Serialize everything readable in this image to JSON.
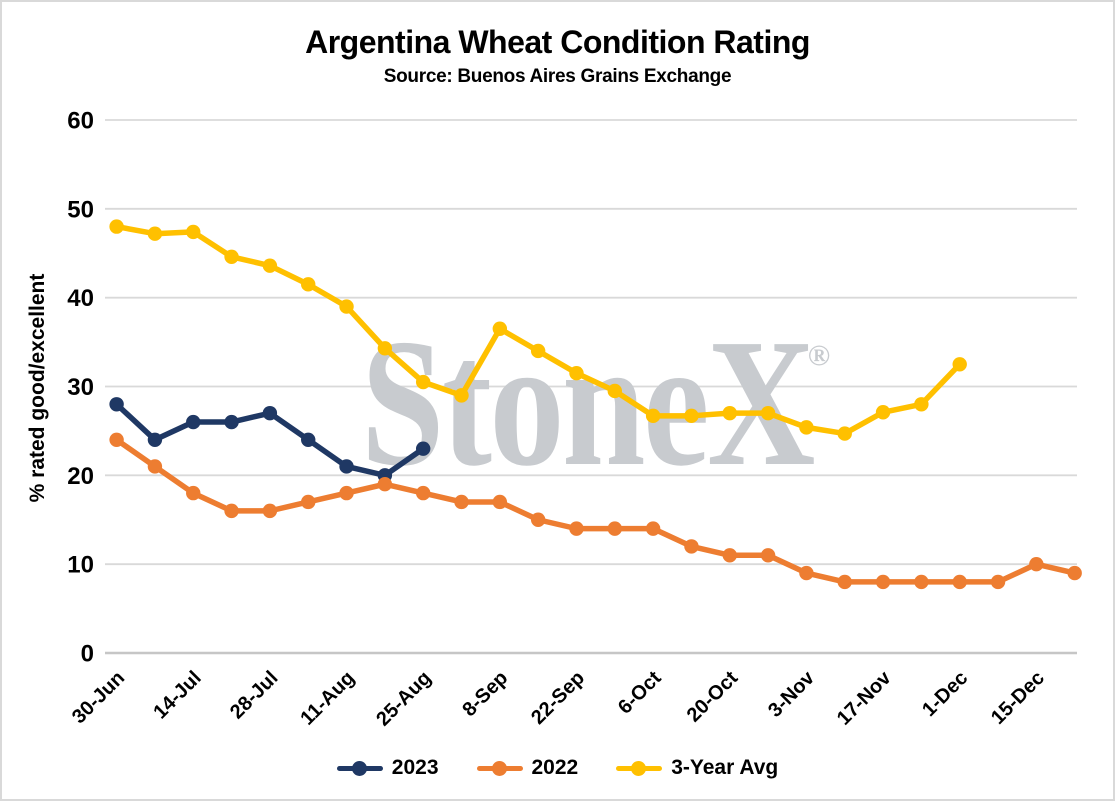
{
  "header": {
    "title": "Argentina Wheat Condition Rating",
    "subtitle": "Source: Buenos Aires Grains Exchange"
  },
  "watermark": {
    "text": "StoneX",
    "registered_mark": "®",
    "color": "#c8cbcf"
  },
  "chart_data": {
    "type": "line",
    "title": "Argentina Wheat Condition Rating",
    "subtitle": "Source: Buenos Aires Grains Exchange",
    "xlabel": "",
    "ylabel": "% rated good/excellent",
    "ylim": [
      0,
      60
    ],
    "yticks": [
      0,
      10,
      20,
      30,
      40,
      50,
      60
    ],
    "grid": true,
    "legend_position": "bottom",
    "categories": [
      "30-Jun",
      "7-Jul",
      "14-Jul",
      "21-Jul",
      "28-Jul",
      "4-Aug",
      "11-Aug",
      "18-Aug",
      "25-Aug",
      "1-Sep",
      "8-Sep",
      "15-Sep",
      "22-Sep",
      "29-Sep",
      "6-Oct",
      "13-Oct",
      "20-Oct",
      "27-Oct",
      "3-Nov",
      "10-Nov",
      "17-Nov",
      "24-Nov",
      "1-Dec",
      "8-Dec",
      "15-Dec",
      "22-Dec"
    ],
    "x_axis_tick_labels": [
      "30-Jun",
      "14-Jul",
      "28-Jul",
      "11-Aug",
      "25-Aug",
      "8-Sep",
      "22-Sep",
      "6-Oct",
      "20-Oct",
      "3-Nov",
      "17-Nov",
      "1-Dec",
      "15-Dec"
    ],
    "series": [
      {
        "name": "2023",
        "color": "#1f3864",
        "values": [
          28,
          24,
          26,
          26,
          27,
          24,
          21,
          20,
          23
        ]
      },
      {
        "name": "2022",
        "color": "#ed7d31",
        "values": [
          24,
          21,
          18,
          16,
          16,
          17,
          18,
          19,
          18,
          17,
          17,
          15,
          14,
          14,
          14,
          12,
          11,
          11,
          9,
          8,
          8,
          8,
          8,
          8,
          10,
          9
        ]
      },
      {
        "name": "3-Year Avg",
        "color": "#ffc000",
        "values": [
          48,
          47.2,
          47.4,
          44.6,
          43.6,
          41.5,
          39,
          34.3,
          30.5,
          29,
          36.5,
          34,
          31.5,
          29.5,
          26.7,
          26.7,
          27,
          27,
          25.4,
          24.7,
          27.1,
          28,
          32.5
        ]
      }
    ]
  },
  "styles": {
    "gridline_color": "#d9d9d9",
    "axis_line_color": "#c6c6c6",
    "text_color": "#000000",
    "background_color": "#ffffff",
    "border_color": "#d9d9d9"
  }
}
